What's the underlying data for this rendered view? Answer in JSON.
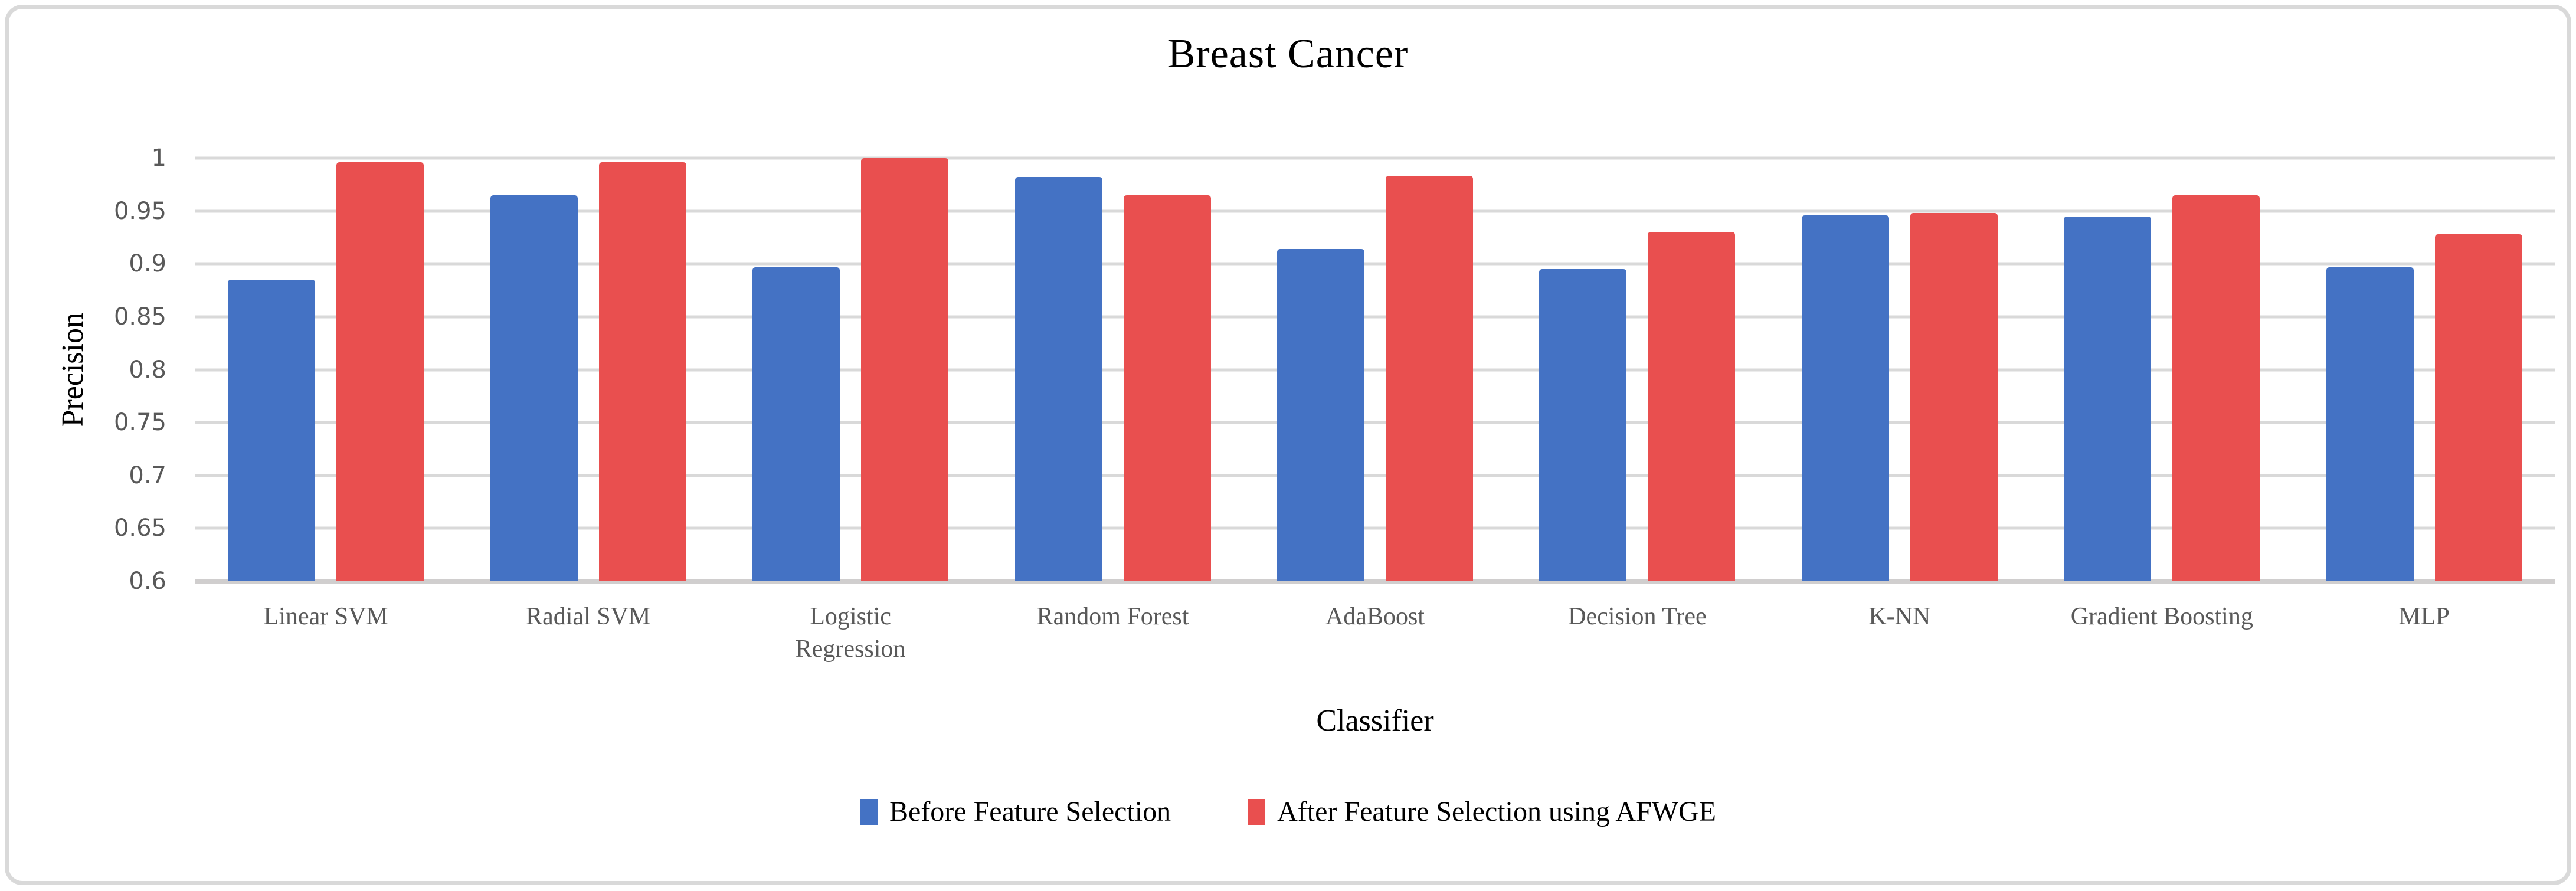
{
  "chart_data": {
    "type": "bar",
    "title": "Breast Cancer",
    "xlabel": "Classifier",
    "ylabel": "Precision",
    "categories": [
      "Linear SVM",
      "Radial SVM",
      "Logistic Regression",
      "Random Forest",
      "AdaBoost",
      "Decision Tree",
      "K-NN",
      "Gradient Boosting",
      "MLP"
    ],
    "series": [
      {
        "name": "Before Feature Selection",
        "color": "#4472C4",
        "values": [
          0.885,
          0.965,
          0.897,
          0.982,
          0.914,
          0.895,
          0.946,
          0.945,
          0.897
        ]
      },
      {
        "name": "After Feature Selection using AFWGE",
        "color": "#E94F4F",
        "values": [
          0.996,
          0.996,
          1.0,
          0.965,
          0.983,
          0.93,
          0.948,
          0.965,
          0.928
        ]
      }
    ],
    "ylim": [
      0.6,
      1.0
    ],
    "ytick_labels": [
      "1",
      "0.95",
      "0.9",
      "0.85",
      "0.8",
      "0.75",
      "0.7",
      "0.65",
      "0.6"
    ],
    "ytick_values": [
      1.0,
      0.95,
      0.9,
      0.85,
      0.8,
      0.75,
      0.7,
      0.65,
      0.6
    ],
    "grid": true,
    "legend_position": "bottom"
  },
  "colors": {
    "gridline": "#D9D9D9",
    "axis_baseline": "#D0CECE",
    "tick_text": "#595959",
    "category_text": "#595959",
    "title_text": "#000000",
    "frame_border": "#D9D9D9"
  }
}
